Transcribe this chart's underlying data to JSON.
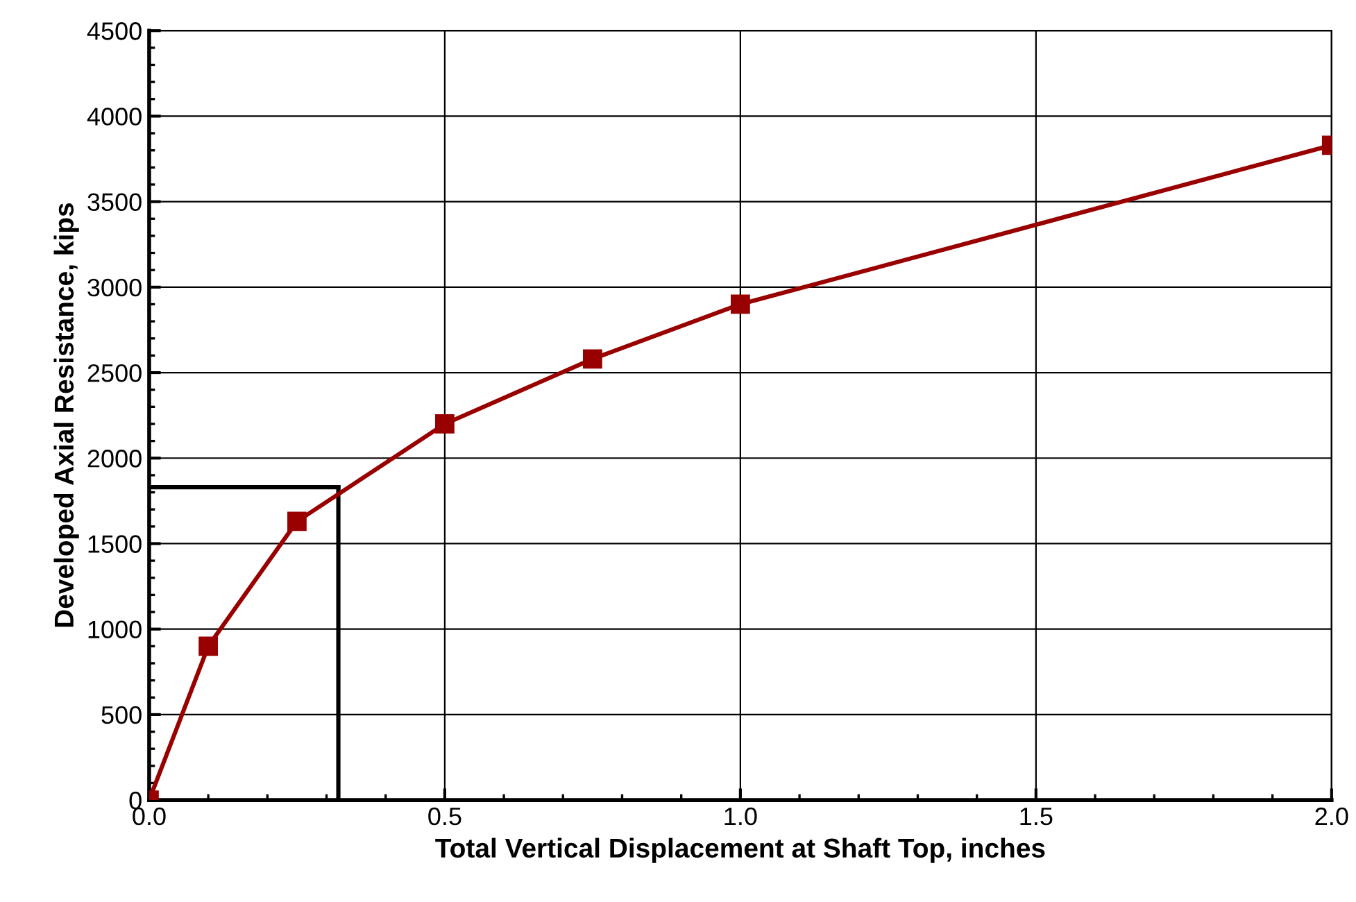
{
  "chart_data": {
    "type": "line",
    "xlabel": "Total Vertical Displacement at Shaft Top, inches",
    "ylabel": "Developed Axial Resistance, kips",
    "x": [
      0.0,
      0.1,
      0.25,
      0.5,
      0.75,
      1.0,
      2.0
    ],
    "series": [
      {
        "color": "#990000",
        "values": [
          0,
          900,
          1630,
          2200,
          2580,
          2900,
          3830
        ]
      }
    ],
    "xlim": [
      0.0,
      2.0
    ],
    "xticks": [
      {
        "value": 0,
        "label": "0.0"
      },
      0.5,
      {
        "value": 1,
        "label": "1.0"
      },
      1.5,
      {
        "value": 2,
        "label": "2.0"
      }
    ],
    "ylim": [
      0,
      4500
    ],
    "yticks": [
      0,
      500,
      1000,
      1500,
      2000,
      2500,
      3000,
      3500,
      4000,
      4500
    ],
    "grid": true,
    "marker": "square",
    "line_style": "solid",
    "ref_lines": [
      {
        "axis": "x",
        "value": 0.32,
        "color": "#000000"
      },
      {
        "axis": "y",
        "value": 1830,
        "color": "#000000"
      }
    ]
  }
}
